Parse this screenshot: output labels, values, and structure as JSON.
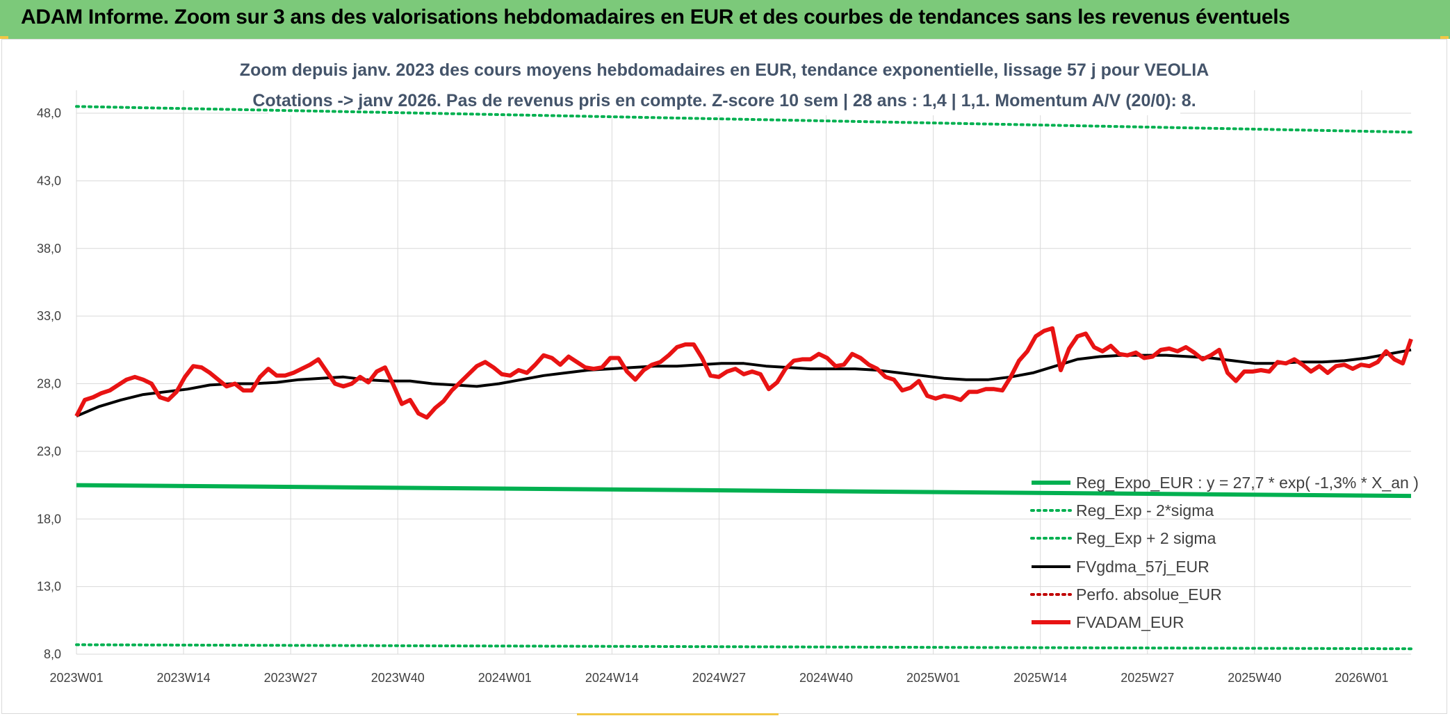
{
  "header": {
    "title": "ADAM Informe. Zoom sur 3 ans des valorisations hebdomadaires en EUR et des courbes de tendances sans les revenus éventuels"
  },
  "colors": {
    "banner": "#7cc97a",
    "green": "#00b050",
    "black": "#000000",
    "red": "#e81313",
    "red_dotted": "#c00000",
    "grid": "#d9d9d9"
  },
  "chart_data": {
    "type": "line",
    "title_line1": "Zoom depuis janv. 2023 des cours moyens hebdomadaires en EUR, tendance exponentielle, lissage 57 j pour VEOLIA",
    "title_line2": "Cotations -> janv 2026. Pas de revenus pris en compte. Z-score 10 sem | 28 ans : 1,4 | 1,1. Momentum A/V (20/0): 8.",
    "ylim": [
      8,
      50
    ],
    "yticks": [
      "48,0",
      "43,0",
      "38,0",
      "33,0",
      "28,0",
      "23,0",
      "18,0",
      "13,0",
      "8,0"
    ],
    "ytick_values": [
      48,
      43,
      38,
      33,
      28,
      23,
      18,
      13,
      8
    ],
    "xticks": [
      "2023W01",
      "2023W14",
      "2023W27",
      "2023W40",
      "2024W01",
      "2024W14",
      "2024W27",
      "2024W40",
      "2025W01",
      "2025W14",
      "2025W27",
      "2025W40",
      "2026W01"
    ],
    "grid": true,
    "legend_position": "bottom-right",
    "series": [
      {
        "name": "Reg_Expo_EUR : y = 27,7 * exp( -1,3% *  X_an )",
        "style": "solid-thick",
        "color": "#00b050",
        "values": [
          [
            0,
            20.5
          ],
          [
            168,
            19.7
          ]
        ]
      },
      {
        "name": "Reg_Exp - 2*sigma",
        "style": "dotted",
        "color": "#00b050",
        "values": [
          [
            0,
            8.7
          ],
          [
            168,
            8.4
          ]
        ]
      },
      {
        "name": "Reg_Exp + 2 sigma",
        "style": "dotted",
        "color": "#00b050",
        "values": [
          [
            0,
            48.5
          ],
          [
            168,
            46.6
          ]
        ]
      },
      {
        "name": "FVgdma_57j_EUR",
        "style": "solid",
        "color": "#000000",
        "values": [
          [
            0,
            25.6
          ],
          [
            3,
            26.3
          ],
          [
            6,
            26.8
          ],
          [
            9,
            27.2
          ],
          [
            12,
            27.4
          ],
          [
            15,
            27.6
          ],
          [
            18,
            27.9
          ],
          [
            21,
            28.0
          ],
          [
            24,
            28.0
          ],
          [
            27,
            28.1
          ],
          [
            30,
            28.3
          ],
          [
            33,
            28.4
          ],
          [
            36,
            28.5
          ],
          [
            39,
            28.3
          ],
          [
            42,
            28.2
          ],
          [
            45,
            28.2
          ],
          [
            48,
            28.0
          ],
          [
            51,
            27.9
          ],
          [
            54,
            27.8
          ],
          [
            57,
            28.0
          ],
          [
            60,
            28.3
          ],
          [
            63,
            28.6
          ],
          [
            66,
            28.8
          ],
          [
            69,
            29.0
          ],
          [
            72,
            29.1
          ],
          [
            75,
            29.2
          ],
          [
            78,
            29.3
          ],
          [
            81,
            29.3
          ],
          [
            84,
            29.4
          ],
          [
            87,
            29.5
          ],
          [
            90,
            29.5
          ],
          [
            93,
            29.3
          ],
          [
            96,
            29.2
          ],
          [
            99,
            29.1
          ],
          [
            102,
            29.1
          ],
          [
            105,
            29.1
          ],
          [
            108,
            29.0
          ],
          [
            111,
            28.8
          ],
          [
            114,
            28.6
          ],
          [
            117,
            28.4
          ],
          [
            120,
            28.3
          ],
          [
            123,
            28.3
          ],
          [
            126,
            28.5
          ],
          [
            129,
            28.8
          ],
          [
            132,
            29.3
          ],
          [
            135,
            29.8
          ],
          [
            138,
            30.0
          ],
          [
            141,
            30.1
          ],
          [
            144,
            30.1
          ],
          [
            147,
            30.1
          ],
          [
            150,
            30.0
          ],
          [
            153,
            29.9
          ],
          [
            156,
            29.7
          ],
          [
            159,
            29.5
          ],
          [
            162,
            29.5
          ],
          [
            165,
            29.6
          ],
          [
            168,
            29.6
          ],
          [
            171,
            29.7
          ],
          [
            174,
            29.9
          ],
          [
            177,
            30.2
          ],
          [
            180,
            30.5
          ]
        ]
      },
      {
        "name": "Perfo. absolue_EUR",
        "style": "dotted",
        "color": "#c00000",
        "values": []
      },
      {
        "name": "FVADAM_EUR",
        "style": "solid-thick",
        "color": "#e81313",
        "values": [
          [
            0,
            25.6
          ],
          [
            1,
            26.8
          ],
          [
            2,
            27.0
          ],
          [
            3,
            27.3
          ],
          [
            4,
            27.5
          ],
          [
            5,
            27.9
          ],
          [
            6,
            28.3
          ],
          [
            7,
            28.5
          ],
          [
            8,
            28.3
          ],
          [
            9,
            28.0
          ],
          [
            10,
            27.0
          ],
          [
            11,
            26.8
          ],
          [
            12,
            27.4
          ],
          [
            13,
            28.5
          ],
          [
            14,
            29.3
          ],
          [
            15,
            29.2
          ],
          [
            16,
            28.8
          ],
          [
            17,
            28.3
          ],
          [
            18,
            27.8
          ],
          [
            19,
            28.0
          ],
          [
            20,
            27.5
          ],
          [
            21,
            27.5
          ],
          [
            22,
            28.5
          ],
          [
            23,
            29.1
          ],
          [
            24,
            28.6
          ],
          [
            25,
            28.6
          ],
          [
            26,
            28.8
          ],
          [
            27,
            29.1
          ],
          [
            28,
            29.4
          ],
          [
            29,
            29.8
          ],
          [
            30,
            28.9
          ],
          [
            31,
            28.0
          ],
          [
            32,
            27.8
          ],
          [
            33,
            28.0
          ],
          [
            34,
            28.5
          ],
          [
            35,
            28.1
          ],
          [
            36,
            28.9
          ],
          [
            37,
            29.2
          ],
          [
            38,
            27.9
          ],
          [
            39,
            26.5
          ],
          [
            40,
            26.8
          ],
          [
            41,
            25.8
          ],
          [
            42,
            25.5
          ],
          [
            43,
            26.2
          ],
          [
            44,
            26.7
          ],
          [
            45,
            27.5
          ],
          [
            46,
            28.1
          ],
          [
            47,
            28.7
          ],
          [
            48,
            29.3
          ],
          [
            49,
            29.6
          ],
          [
            50,
            29.2
          ],
          [
            51,
            28.7
          ],
          [
            52,
            28.6
          ],
          [
            53,
            29.0
          ],
          [
            54,
            28.8
          ],
          [
            55,
            29.4
          ],
          [
            56,
            30.1
          ],
          [
            57,
            29.9
          ],
          [
            58,
            29.4
          ],
          [
            59,
            30.0
          ],
          [
            60,
            29.6
          ],
          [
            61,
            29.2
          ],
          [
            62,
            29.1
          ],
          [
            63,
            29.2
          ],
          [
            64,
            29.9
          ],
          [
            65,
            29.9
          ],
          [
            66,
            28.9
          ],
          [
            67,
            28.3
          ],
          [
            68,
            29.0
          ],
          [
            69,
            29.4
          ],
          [
            70,
            29.6
          ],
          [
            71,
            30.1
          ],
          [
            72,
            30.7
          ],
          [
            73,
            30.9
          ],
          [
            74,
            30.9
          ],
          [
            75,
            29.9
          ],
          [
            76,
            28.6
          ],
          [
            77,
            28.5
          ],
          [
            78,
            28.9
          ],
          [
            79,
            29.1
          ],
          [
            80,
            28.7
          ],
          [
            81,
            28.9
          ],
          [
            82,
            28.7
          ],
          [
            83,
            27.6
          ],
          [
            84,
            28.1
          ],
          [
            85,
            29.1
          ],
          [
            86,
            29.7
          ],
          [
            87,
            29.8
          ],
          [
            88,
            29.8
          ],
          [
            89,
            30.2
          ],
          [
            90,
            29.9
          ],
          [
            91,
            29.3
          ],
          [
            92,
            29.4
          ],
          [
            93,
            30.2
          ],
          [
            94,
            29.9
          ],
          [
            95,
            29.4
          ],
          [
            96,
            29.1
          ],
          [
            97,
            28.5
          ],
          [
            98,
            28.3
          ],
          [
            99,
            27.5
          ],
          [
            100,
            27.7
          ],
          [
            101,
            28.2
          ],
          [
            102,
            27.1
          ],
          [
            103,
            26.9
          ],
          [
            104,
            27.1
          ],
          [
            105,
            27.0
          ],
          [
            106,
            26.8
          ],
          [
            107,
            27.4
          ],
          [
            108,
            27.4
          ],
          [
            109,
            27.6
          ],
          [
            110,
            27.6
          ],
          [
            111,
            27.5
          ],
          [
            112,
            28.5
          ],
          [
            113,
            29.7
          ],
          [
            114,
            30.4
          ],
          [
            115,
            31.5
          ],
          [
            116,
            31.9
          ],
          [
            117,
            32.1
          ],
          [
            118,
            29.0
          ],
          [
            119,
            30.6
          ],
          [
            120,
            31.5
          ],
          [
            121,
            31.7
          ],
          [
            122,
            30.7
          ],
          [
            123,
            30.4
          ],
          [
            124,
            30.8
          ],
          [
            125,
            30.2
          ],
          [
            126,
            30.1
          ],
          [
            127,
            30.3
          ],
          [
            128,
            29.9
          ],
          [
            129,
            30.0
          ],
          [
            130,
            30.5
          ],
          [
            131,
            30.6
          ],
          [
            132,
            30.4
          ],
          [
            133,
            30.7
          ],
          [
            134,
            30.3
          ],
          [
            135,
            29.8
          ],
          [
            136,
            30.1
          ],
          [
            137,
            30.5
          ],
          [
            138,
            28.8
          ],
          [
            139,
            28.2
          ],
          [
            140,
            28.9
          ],
          [
            141,
            28.9
          ],
          [
            142,
            29.0
          ],
          [
            143,
            28.9
          ],
          [
            144,
            29.6
          ],
          [
            145,
            29.5
          ],
          [
            146,
            29.8
          ],
          [
            147,
            29.4
          ],
          [
            148,
            28.9
          ],
          [
            149,
            29.3
          ],
          [
            150,
            28.8
          ],
          [
            151,
            29.3
          ],
          [
            152,
            29.4
          ],
          [
            153,
            29.1
          ],
          [
            154,
            29.4
          ],
          [
            155,
            29.3
          ],
          [
            156,
            29.6
          ],
          [
            157,
            30.4
          ],
          [
            158,
            29.8
          ],
          [
            159,
            29.5
          ],
          [
            160,
            31.3
          ]
        ]
      }
    ]
  }
}
